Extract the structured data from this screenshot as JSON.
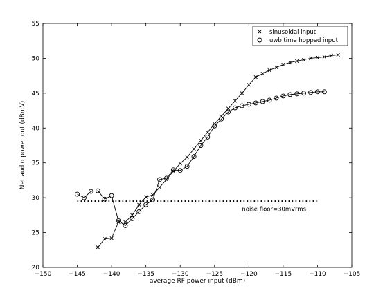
{
  "chart_data": {
    "type": "line",
    "title": "",
    "xlabel": "average RF power input (dBm)",
    "ylabel": "Net audio power out (dBmV)",
    "xlim": [
      -150,
      -105
    ],
    "ylim": [
      20,
      55
    ],
    "xticks": [
      -150,
      -145,
      -140,
      -135,
      -130,
      -125,
      -120,
      -115,
      -110,
      -105
    ],
    "yticks": [
      20,
      25,
      30,
      35,
      40,
      45,
      50,
      55
    ],
    "xtick_labels": [
      "−150",
      "−145",
      "−140",
      "−135",
      "−130",
      "−125",
      "−120",
      "−115",
      "−110",
      "−105"
    ],
    "ytick_labels": [
      "20",
      "25",
      "30",
      "35",
      "40",
      "45",
      "50",
      "55"
    ],
    "grid": false,
    "legend_position": "top-right",
    "series": [
      {
        "name": "sinusoidal input",
        "marker": "x",
        "x": [
          -142,
          -141,
          -140,
          -139,
          -138,
          -137,
          -136,
          -135,
          -134,
          -133,
          -132,
          -131,
          -130,
          -129,
          -128,
          -127,
          -126,
          -125,
          -124,
          -123,
          -122,
          -121,
          -120,
          -119,
          -118,
          -117,
          -116,
          -115,
          -114,
          -113,
          -112,
          -111,
          -110,
          -109,
          -108,
          -107
        ],
        "y": [
          22.9,
          24.1,
          24.2,
          26.5,
          26.5,
          27.5,
          29.0,
          30.1,
          30.4,
          31.5,
          32.6,
          33.8,
          34.9,
          35.8,
          37.0,
          38.2,
          39.4,
          40.6,
          41.7,
          42.8,
          43.9,
          45.0,
          46.2,
          47.3,
          47.8,
          48.3,
          48.7,
          49.1,
          49.4,
          49.6,
          49.8,
          50.0,
          50.1,
          50.2,
          50.4,
          50.5
        ]
      },
      {
        "name": "uwb time hopped input",
        "marker": "o",
        "x": [
          -145,
          -144,
          -143,
          -142,
          -141,
          -140,
          -139,
          -138,
          -137,
          -136,
          -135,
          -134,
          -133,
          -132,
          -131,
          -130,
          -129,
          -128,
          -127,
          -126,
          -125,
          -124,
          -123,
          -122,
          -121,
          -120,
          -119,
          -118,
          -117,
          -116,
          -115,
          -114,
          -113,
          -112,
          -111,
          -110,
          -109
        ],
        "y": [
          30.5,
          30.0,
          30.9,
          31.0,
          29.8,
          30.3,
          26.7,
          26.0,
          27.0,
          28.0,
          29.0,
          29.7,
          32.6,
          32.8,
          34.0,
          33.9,
          34.5,
          35.9,
          37.5,
          38.7,
          40.3,
          41.3,
          42.3,
          42.9,
          43.2,
          43.4,
          43.6,
          43.8,
          44.0,
          44.3,
          44.6,
          44.8,
          44.9,
          45.0,
          45.1,
          45.2,
          45.2
        ]
      }
    ],
    "reference_lines": [
      {
        "y": 29.5,
        "x_start": -145,
        "x_end": -110,
        "style": "dotted"
      }
    ],
    "annotations": [
      {
        "text": "noise floor=30mVrms",
        "x": -121,
        "y": 28.1
      }
    ]
  }
}
